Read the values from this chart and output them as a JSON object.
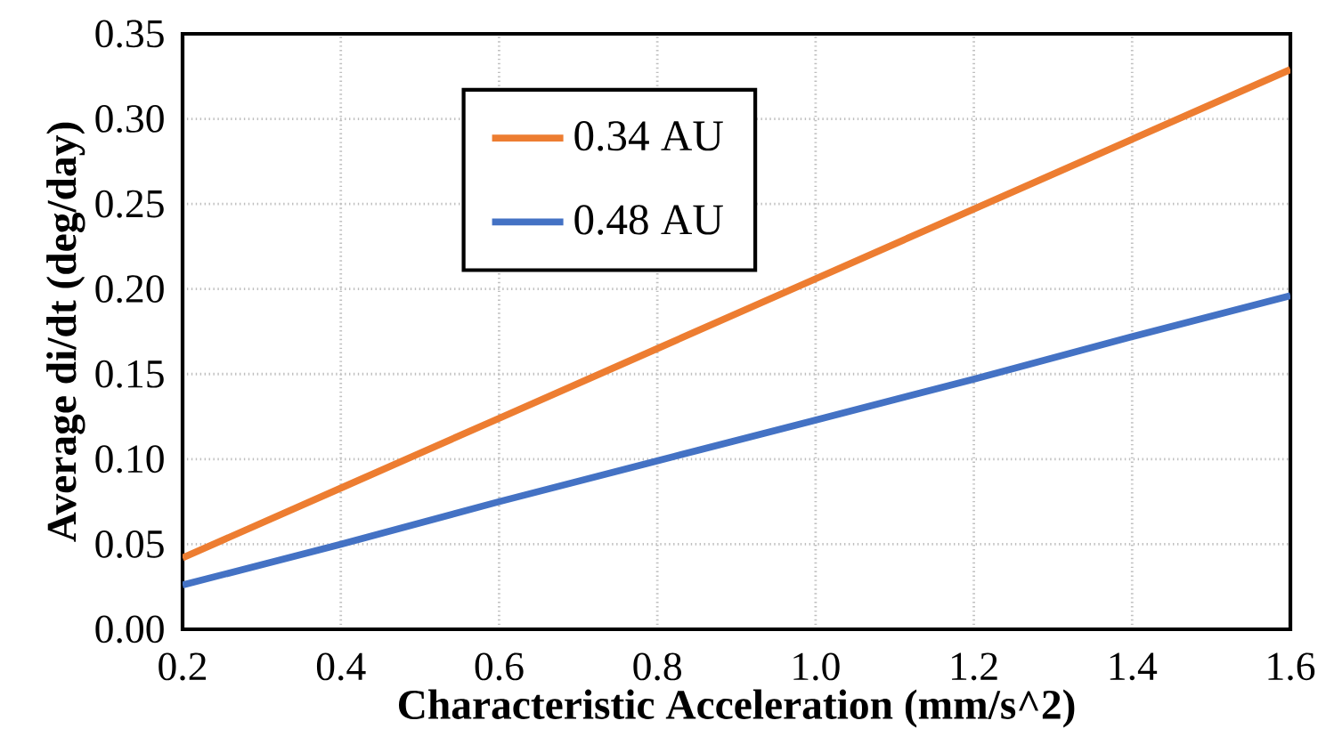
{
  "chart_data": {
    "type": "line",
    "xlabel": "Characteristic Acceleration (mm/s^2)",
    "ylabel": "Average di/dt (deg/day)",
    "x": [
      0.2,
      0.4,
      0.6,
      0.8,
      1.0,
      1.2,
      1.4,
      1.6
    ],
    "series": [
      {
        "name": "0.34 AU",
        "color": "#ed7d31",
        "values": [
          0.042,
          0.083,
          0.124,
          0.165,
          0.206,
          0.247,
          0.288,
          0.329
        ]
      },
      {
        "name": "0.48 AU",
        "color": "#4472c4",
        "values": [
          0.026,
          0.05,
          0.075,
          0.099,
          0.123,
          0.147,
          0.172,
          0.196
        ]
      }
    ],
    "xlim": [
      0.2,
      1.6
    ],
    "xticks": [
      {
        "value": 0.2,
        "label": "0.2"
      },
      {
        "value": 0.4,
        "label": "0.4"
      },
      {
        "value": 0.6,
        "label": "0.6"
      },
      {
        "value": 0.8,
        "label": "0.8"
      },
      {
        "value": 1.0,
        "label": "1.0"
      },
      {
        "value": 1.2,
        "label": "1.2"
      },
      {
        "value": 1.4,
        "label": "1.4"
      },
      {
        "value": 1.6,
        "label": "1.6"
      }
    ],
    "ylim": [
      0,
      0.35
    ],
    "yticks": [
      {
        "value": 0,
        "label": "0.00"
      },
      {
        "value": 0.05,
        "label": "0.05"
      },
      {
        "value": 0.1,
        "label": "0.10"
      },
      {
        "value": 0.15,
        "label": "0.15"
      },
      {
        "value": 0.2,
        "label": "0.20"
      },
      {
        "value": 0.25,
        "label": "0.25"
      },
      {
        "value": 0.3,
        "label": "0.30"
      },
      {
        "value": 0.35,
        "label": "0.35"
      }
    ],
    "grid": true,
    "legend": "top left",
    "marker": "none",
    "line_style": "solid"
  }
}
